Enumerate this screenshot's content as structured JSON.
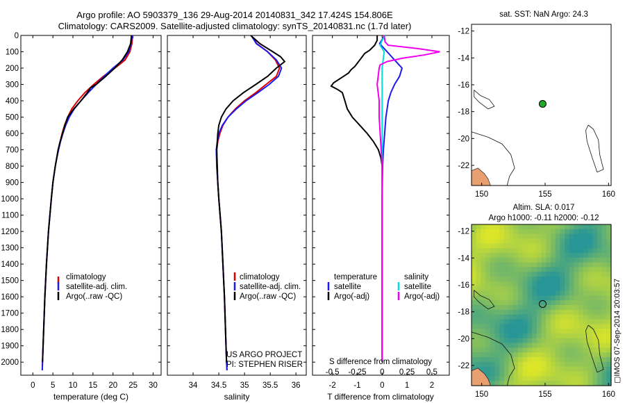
{
  "header": {
    "line1": "Argo profile: AO 5903379_136 29-Aug-2014 20140831_342 17.424S 154.806E",
    "line2": "Climatology: CARS2009. Satellite-adjusted climatology: synTS_20140831.nc (1.7d later)"
  },
  "depth_ticks": [
    "0",
    "100",
    "200",
    "300",
    "400",
    "500",
    "600",
    "700",
    "800",
    "900",
    "1000",
    "1100",
    "1200",
    "1300",
    "1400",
    "1500",
    "1600",
    "1700",
    "1800",
    "1900",
    "2000"
  ],
  "colors": {
    "climatology": "#dd0000",
    "satellite": "#1a1aee",
    "argo": "#000000",
    "s_satellite": "#00dddd",
    "s_argo": "#ee00ee",
    "land": "#e8a070",
    "float_marker": "#22aa22"
  },
  "chart_data": [
    {
      "id": "temperature",
      "type": "line",
      "xlabel": "temperature (deg C)",
      "ylabel": "",
      "xlim": [
        -3,
        32
      ],
      "ylim": [
        2080,
        0
      ],
      "xticks": [
        0,
        5,
        10,
        15,
        20,
        25,
        30
      ],
      "xtick_labels": [
        "0",
        "5",
        "10",
        "15",
        "20",
        "25",
        "30"
      ],
      "legend": [
        "climatology",
        "satellite-adj. clim.",
        "Argo(..raw -QC)"
      ],
      "legend_position": "lower-left",
      "series": [
        {
          "name": "climatology",
          "color": "#dd0000",
          "depth": [
            0,
            50,
            100,
            150,
            200,
            250,
            300,
            350,
            400,
            450,
            500,
            550,
            600,
            650,
            700,
            800,
            900,
            1000,
            1200,
            1400,
            1600,
            1800,
            2000,
            2050
          ],
          "values": [
            24.9,
            24.7,
            24.2,
            23.0,
            20.5,
            17.6,
            15.2,
            13.0,
            11.2,
            9.7,
            8.7,
            7.9,
            7.3,
            6.8,
            6.3,
            5.6,
            5.0,
            4.6,
            3.9,
            3.4,
            3.0,
            2.7,
            2.4,
            2.35
          ]
        },
        {
          "name": "satellite-adj. clim.",
          "color": "#1a1aee",
          "depth": [
            0,
            50,
            100,
            150,
            200,
            250,
            300,
            350,
            400,
            450,
            500,
            550,
            600,
            650,
            700,
            800,
            900,
            1000,
            1200,
            1400,
            1600,
            1800,
            2000,
            2050
          ],
          "values": [
            24.8,
            24.5,
            23.9,
            22.5,
            20.0,
            17.8,
            15.8,
            13.8,
            12.0,
            10.3,
            9.1,
            8.2,
            7.5,
            6.9,
            6.4,
            5.6,
            5.0,
            4.6,
            3.9,
            3.4,
            3.0,
            2.7,
            2.4,
            2.35
          ]
        },
        {
          "name": "Argo(..raw -QC)",
          "color": "#000000",
          "depth": [
            0,
            50,
            100,
            150,
            200,
            250,
            300,
            320,
            350,
            400,
            450,
            500,
            550,
            600,
            650,
            700,
            800,
            900,
            1000,
            1200,
            1400,
            1600,
            1800,
            2000
          ],
          "values": [
            24.6,
            24.4,
            23.6,
            22.3,
            20.4,
            18.2,
            15.8,
            14.4,
            13.6,
            12.0,
            10.2,
            8.7,
            8.0,
            7.4,
            6.8,
            6.3,
            5.6,
            5.0,
            4.6,
            3.9,
            3.4,
            3.0,
            2.7,
            2.4
          ]
        }
      ]
    },
    {
      "id": "salinity",
      "type": "line",
      "xlabel": "salinity",
      "ylabel": "",
      "xlim": [
        33.5,
        36.2
      ],
      "ylim": [
        2080,
        0
      ],
      "xticks": [
        34,
        34.5,
        35,
        35.5,
        36
      ],
      "xtick_labels": [
        "34",
        "34.5",
        "35",
        "35.5",
        "36"
      ],
      "legend": [
        "climatology",
        "satellite-adj. clim.",
        "Argo(..raw -QC)"
      ],
      "legend_position": "lower-right",
      "annotation": [
        "US ARGO PROJECT",
        "PI: STEPHEN RISER"
      ],
      "series": [
        {
          "name": "climatology",
          "color": "#dd0000",
          "depth": [
            0,
            50,
            100,
            150,
            200,
            250,
            300,
            350,
            400,
            450,
            500,
            550,
            600,
            650,
            700,
            800,
            900,
            1000,
            1200,
            1400,
            1600,
            1800,
            2000,
            2050
          ],
          "values": [
            35.13,
            35.24,
            35.45,
            35.6,
            35.68,
            35.62,
            35.42,
            35.22,
            35.0,
            34.82,
            34.68,
            34.58,
            34.52,
            34.48,
            34.46,
            34.46,
            34.48,
            34.5,
            34.55,
            34.58,
            34.61,
            34.63,
            34.65,
            34.66
          ]
        },
        {
          "name": "satellite-adj. clim.",
          "color": "#1a1aee",
          "depth": [
            0,
            50,
            100,
            150,
            200,
            250,
            300,
            350,
            400,
            450,
            500,
            550,
            600,
            650,
            700,
            800,
            900,
            1000,
            1200,
            1400,
            1600,
            1800,
            2000,
            2050
          ],
          "values": [
            35.13,
            35.23,
            35.45,
            35.62,
            35.72,
            35.66,
            35.48,
            35.26,
            35.03,
            34.84,
            34.68,
            34.57,
            34.5,
            34.47,
            34.45,
            34.46,
            34.48,
            34.5,
            34.55,
            34.58,
            34.61,
            34.63,
            34.65,
            34.66
          ]
        },
        {
          "name": "Argo(..raw -QC)",
          "color": "#000000",
          "depth": [
            0,
            50,
            100,
            130,
            160,
            200,
            250,
            300,
            350,
            400,
            450,
            500,
            550,
            600,
            650,
            700,
            800,
            900,
            1000,
            1200,
            1400,
            1600,
            1800,
            2000
          ],
          "values": [
            35.12,
            35.3,
            35.55,
            35.7,
            35.78,
            35.62,
            35.45,
            35.22,
            34.98,
            34.78,
            34.64,
            34.55,
            34.5,
            34.48,
            34.47,
            34.46,
            34.47,
            34.48,
            34.5,
            34.55,
            34.58,
            34.61,
            34.63,
            34.65
          ]
        }
      ]
    },
    {
      "id": "difference",
      "type": "line",
      "xlabel": "T difference from climatology",
      "title_top": "S difference from climatology",
      "xlim": [
        -2.8,
        2.7
      ],
      "ylim": [
        2080,
        0
      ],
      "xticks": [
        -2,
        -1,
        0,
        1,
        2
      ],
      "xtick_labels": [
        "-2",
        "-1",
        "0",
        "1",
        "2"
      ],
      "s_xticks": [
        -0.5,
        -0.25,
        0,
        0.25,
        0.5
      ],
      "s_xtick_labels": [
        "-0.5",
        "-0.25",
        "0",
        "0.25",
        "0.5"
      ],
      "legend_left_title": "temperature",
      "legend_right_title": "salinity",
      "legend": [
        "satellite",
        "Argo(-adj)",
        "satellite",
        "Argo(-adj)"
      ],
      "series": [
        {
          "name": "T satellite",
          "color": "#1a1aee",
          "depth": [
            0,
            50,
            100,
            150,
            200,
            250,
            300,
            350,
            400,
            500,
            600,
            700,
            800,
            1000,
            1500,
            2000
          ],
          "values": [
            0.1,
            -0.1,
            0.2,
            0.5,
            0.8,
            0.7,
            0.5,
            0.35,
            0.25,
            0.15,
            0.1,
            0.05,
            0.02,
            0.0,
            0.0,
            0.0
          ]
        },
        {
          "name": "T Argo(-adj)",
          "color": "#000000",
          "depth": [
            0,
            30,
            60,
            90,
            110,
            130,
            150,
            170,
            190,
            210,
            230,
            250,
            270,
            290,
            310,
            330,
            350,
            400,
            450,
            500,
            550,
            600,
            650,
            700,
            750,
            800,
            900,
            1000,
            1500,
            2000
          ],
          "values": [
            -0.2,
            -0.2,
            -0.3,
            -0.5,
            -0.7,
            -0.8,
            -0.9,
            -1.0,
            -1.1,
            -1.25,
            -1.35,
            -1.55,
            -1.75,
            -1.95,
            -2.05,
            -1.8,
            -1.6,
            -1.5,
            -1.4,
            -1.2,
            -0.9,
            -0.6,
            -0.35,
            -0.15,
            -0.05,
            0.0,
            0.0,
            0.0,
            0.0,
            0.0
          ]
        },
        {
          "name": "S satellite",
          "color": "#00dddd",
          "depth": [
            0,
            30,
            60,
            100,
            150,
            200,
            300,
            500,
            800,
            1200,
            1600,
            2000
          ],
          "values": [
            0.03,
            0.0,
            -0.02,
            0.02,
            0.01,
            0.0,
            0.0,
            0.0,
            0.0,
            0.0,
            0.0,
            0.0
          ]
        },
        {
          "name": "S Argo(-adj)",
          "color": "#ee00ee",
          "depth": [
            0,
            40,
            60,
            80,
            100,
            120,
            140,
            160,
            180,
            200,
            250,
            300,
            400,
            500,
            600,
            700,
            800,
            1000,
            2000
          ],
          "values": [
            0.02,
            0.03,
            0.06,
            0.35,
            0.58,
            0.42,
            0.2,
            0.05,
            -0.02,
            -0.03,
            -0.04,
            -0.05,
            -0.03,
            -0.03,
            -0.02,
            -0.01,
            0.0,
            0.0,
            0.0
          ]
        }
      ]
    },
    {
      "id": "sst_map",
      "type": "map",
      "title": "sat. SST: NaN Argo: 24.3",
      "xlim": [
        149.2,
        160.2
      ],
      "ylim": [
        -23.5,
        -11.5
      ],
      "xticks": [
        150,
        155,
        160
      ],
      "xtick_labels": [
        "150",
        "155",
        "160"
      ],
      "yticks": [
        -12,
        -14,
        -16,
        -18,
        -20,
        -22
      ],
      "ytick_labels": [
        "-12",
        "-14",
        "-16",
        "-18",
        "-20",
        "-22"
      ],
      "float_position": [
        154.806,
        -17.424
      ]
    },
    {
      "id": "sla_map",
      "type": "heatmap",
      "title": "Altim. SLA: 0.017",
      "subtitle": "Argo h1000: -0.11 h2000: -0.12",
      "xlim": [
        149.2,
        160.2
      ],
      "ylim": [
        -23.5,
        -11.5
      ],
      "xticks": [
        150,
        155,
        160
      ],
      "xtick_labels": [
        "150",
        "155",
        "160"
      ],
      "yticks": [
        -12,
        -14,
        -16,
        -18,
        -20,
        -22
      ],
      "ytick_labels": [
        "-12",
        "-14",
        "-16",
        "-18",
        "-20",
        "-22"
      ],
      "float_position": [
        154.806,
        -17.424
      ]
    }
  ],
  "footer": {
    "credit": "▢IMOS 07-Sep-2014 20:03:57"
  }
}
